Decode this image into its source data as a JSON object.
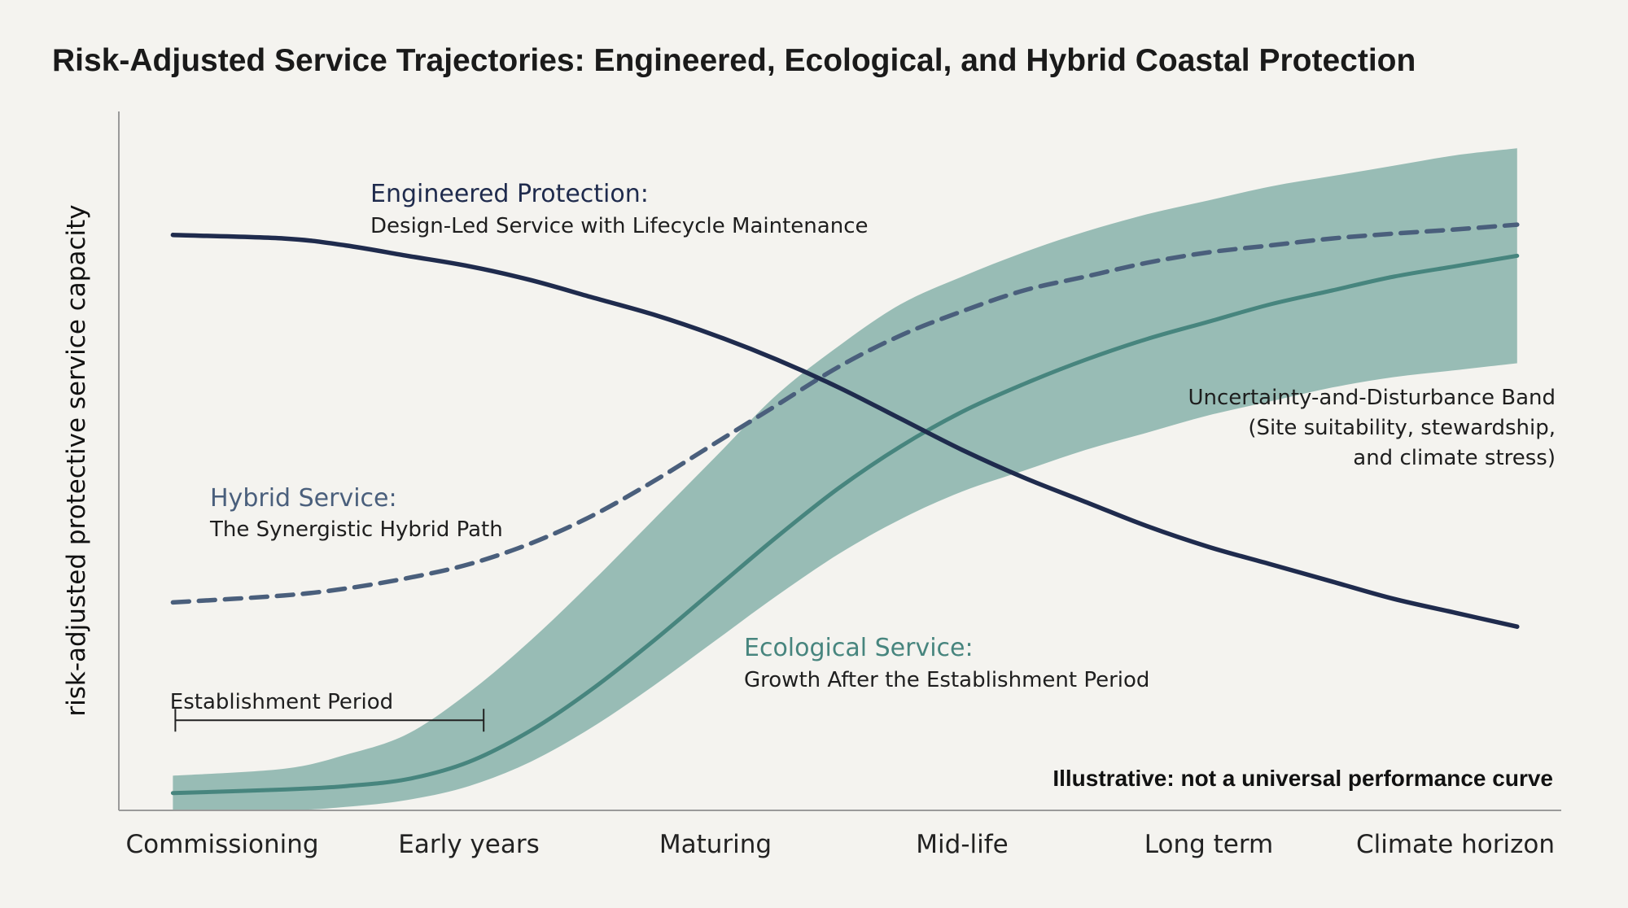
{
  "chart_data": {
    "type": "line",
    "title": "Risk-Adjusted Service Trajectories: Engineered, Ecological, and Hybrid Coastal Protection",
    "ylabel": "risk-adjusted protective service capacity",
    "xlabel": "",
    "categories": [
      "Commissioning",
      "Early years",
      "Maturing",
      "Mid-life",
      "Long term",
      "Climate horizon"
    ],
    "x_range": [
      0,
      5
    ],
    "ylim": [
      0,
      1
    ],
    "grid": false,
    "x": [
      -0.2,
      0.25,
      0.5,
      0.75,
      1.0,
      1.25,
      1.5,
      1.75,
      2.0,
      2.25,
      2.5,
      2.75,
      3.0,
      3.25,
      3.5,
      3.75,
      4.0,
      4.25,
      4.5,
      4.75,
      5.0,
      5.25
    ],
    "series": [
      {
        "name": "Engineered Protection:",
        "subtitle": "Design-Led Service with Lifecycle Maintenance",
        "color": "#1f2b4d",
        "style": "solid",
        "values": [
          0.83,
          0.825,
          0.815,
          0.8,
          0.785,
          0.765,
          0.74,
          0.715,
          0.685,
          0.65,
          0.61,
          0.565,
          0.52,
          0.48,
          0.445,
          0.41,
          0.38,
          0.355,
          0.33,
          0.305,
          0.285,
          0.265
        ]
      },
      {
        "name": "Hybrid Service:",
        "subtitle": "The Synergistic Hybrid Path",
        "color": "#4a5f7c",
        "style": "dashed",
        "values": [
          0.3,
          0.31,
          0.32,
          0.335,
          0.355,
          0.385,
          0.425,
          0.475,
          0.53,
          0.585,
          0.64,
          0.685,
          0.72,
          0.75,
          0.77,
          0.79,
          0.805,
          0.815,
          0.825,
          0.832,
          0.838,
          0.845
        ]
      },
      {
        "name": "Ecological Service:",
        "subtitle": "Growth After the Establishment Period",
        "color": "#47857e",
        "style": "solid",
        "values": [
          0.025,
          0.03,
          0.035,
          0.045,
          0.07,
          0.115,
          0.175,
          0.245,
          0.32,
          0.395,
          0.465,
          0.525,
          0.575,
          0.615,
          0.65,
          0.68,
          0.705,
          0.73,
          0.75,
          0.77,
          0.785,
          0.8
        ]
      }
    ],
    "band": {
      "name": "Uncertainty-and-Disturbance Band",
      "subtitle_lines": [
        "(Site suitability, stewardship,",
        "and climate stress)"
      ],
      "color": "#8fb7b0",
      "upper": [
        0.05,
        0.06,
        0.08,
        0.11,
        0.17,
        0.245,
        0.33,
        0.42,
        0.51,
        0.6,
        0.67,
        0.73,
        0.77,
        0.805,
        0.835,
        0.86,
        0.88,
        0.9,
        0.915,
        0.93,
        0.945,
        0.955
      ],
      "lower": [
        0.0,
        0.0,
        0.005,
        0.015,
        0.035,
        0.07,
        0.12,
        0.18,
        0.245,
        0.31,
        0.37,
        0.42,
        0.46,
        0.49,
        0.52,
        0.545,
        0.57,
        0.59,
        0.61,
        0.625,
        0.635,
        0.645
      ]
    },
    "annotations": {
      "establishment_period": {
        "label": "Establishment Period",
        "x_start": -0.2,
        "x_end": 1.06,
        "y": 0.13
      },
      "note": "Illustrative: not a universal performance curve"
    }
  }
}
